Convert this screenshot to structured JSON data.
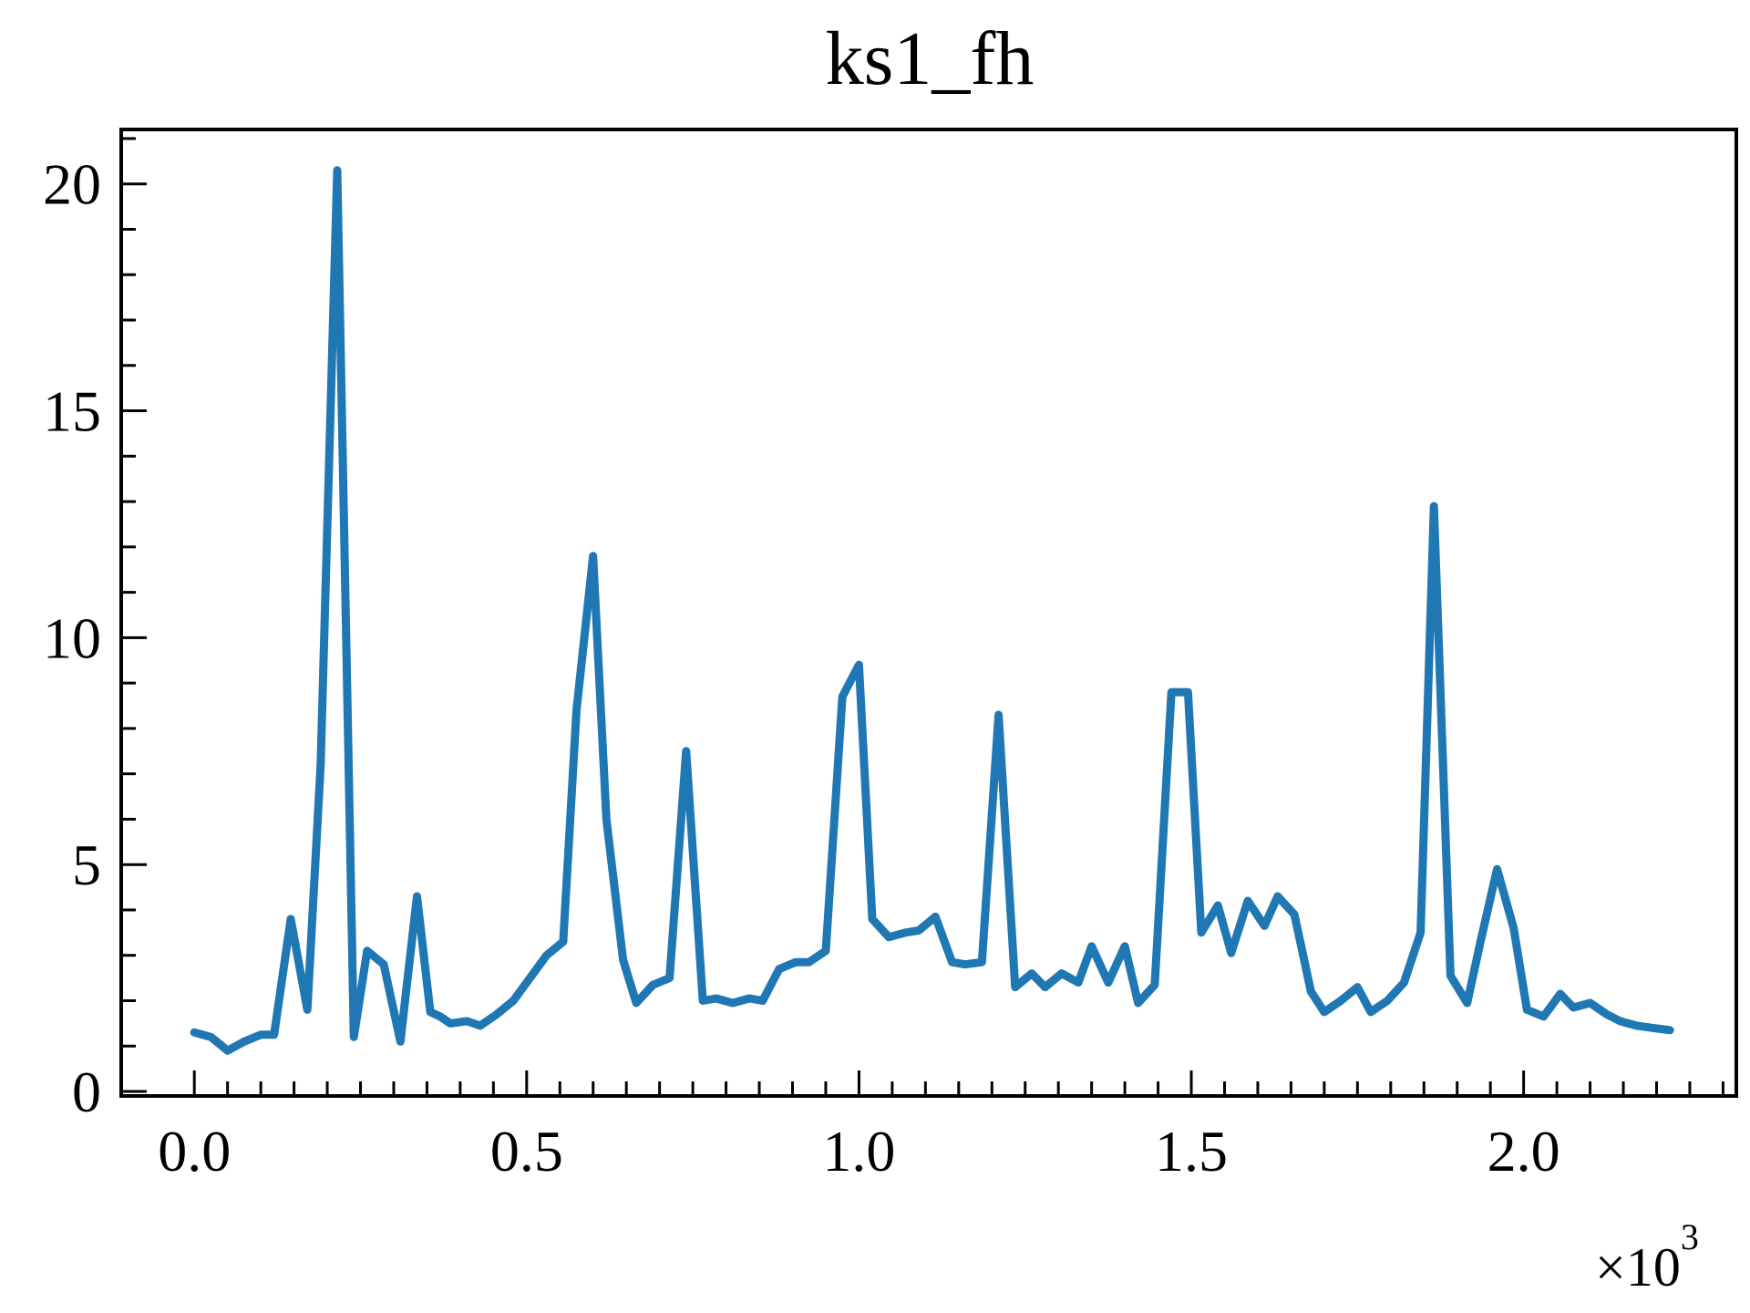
{
  "chart_data": {
    "type": "line",
    "title": "ks1_fh",
    "xlabel": "",
    "ylabel": "",
    "x_scale_note": "×10",
    "x_scale_exponent": "3",
    "xlim": [
      -0.11,
      2.32
    ],
    "ylim": [
      -0.1,
      21.2
    ],
    "x_ticks": [
      0.0,
      0.5,
      1.0,
      1.5,
      2.0
    ],
    "x_tick_labels": [
      "0.0",
      "0.5",
      "1.0",
      "1.5",
      "2.0"
    ],
    "y_ticks": [
      0,
      5,
      10,
      15,
      20
    ],
    "y_tick_labels": [
      "0",
      "5",
      "10",
      "15",
      "20"
    ],
    "grid": false,
    "color": "#1f77b4",
    "series": [
      {
        "x": [
          0.0,
          0.025,
          0.05,
          0.075,
          0.1,
          0.12,
          0.145,
          0.17,
          0.19,
          0.215,
          0.24,
          0.26,
          0.285,
          0.31,
          0.335,
          0.355,
          0.37,
          0.385,
          0.41,
          0.43,
          0.455,
          0.48,
          0.505,
          0.53,
          0.555,
          0.575,
          0.6,
          0.62,
          0.645,
          0.665,
          0.69,
          0.715,
          0.74,
          0.765,
          0.785,
          0.81,
          0.835,
          0.855,
          0.88,
          0.905,
          0.925,
          0.95,
          0.975,
          1.0,
          1.02,
          1.045,
          1.07,
          1.09,
          1.115,
          1.14,
          1.16,
          1.185,
          1.21,
          1.235,
          1.26,
          1.28,
          1.305,
          1.33,
          1.35,
          1.375,
          1.4,
          1.42,
          1.445,
          1.47,
          1.495,
          1.515,
          1.54,
          1.56,
          1.585,
          1.61,
          1.63,
          1.655,
          1.68,
          1.7,
          1.725,
          1.75,
          1.77,
          1.795,
          1.82,
          1.845,
          1.865,
          1.89,
          1.915,
          1.935,
          1.96,
          1.985,
          2.005,
          2.03,
          2.055,
          2.075,
          2.1,
          2.125,
          2.145,
          2.17,
          2.195,
          2.22
        ],
        "y": [
          1.3,
          1.2,
          0.9,
          1.1,
          1.25,
          1.25,
          3.8,
          1.8,
          7.2,
          20.3,
          1.2,
          3.1,
          2.8,
          1.1,
          4.3,
          1.75,
          1.65,
          1.5,
          1.55,
          1.45,
          1.7,
          2.0,
          2.5,
          3.0,
          3.3,
          8.4,
          11.8,
          6.0,
          2.9,
          1.95,
          2.35,
          2.5,
          7.5,
          2.0,
          2.05,
          1.95,
          2.05,
          2.0,
          2.7,
          2.85,
          2.85,
          3.1,
          8.7,
          9.4,
          3.8,
          3.4,
          3.5,
          3.55,
          3.85,
          2.85,
          2.8,
          2.85,
          8.3,
          2.3,
          2.6,
          2.3,
          2.6,
          2.4,
          3.2,
          2.4,
          3.2,
          1.95,
          2.35,
          8.8,
          8.8,
          3.5,
          4.1,
          3.05,
          4.2,
          3.65,
          4.3,
          3.9,
          2.2,
          1.75,
          2.0,
          2.3,
          1.75,
          2.0,
          2.4,
          3.5,
          12.9,
          2.55,
          1.95,
          3.3,
          4.9,
          3.6,
          1.8,
          1.65,
          2.15,
          1.85,
          1.95,
          1.7,
          1.55,
          1.45,
          1.4,
          1.35
        ]
      }
    ]
  }
}
